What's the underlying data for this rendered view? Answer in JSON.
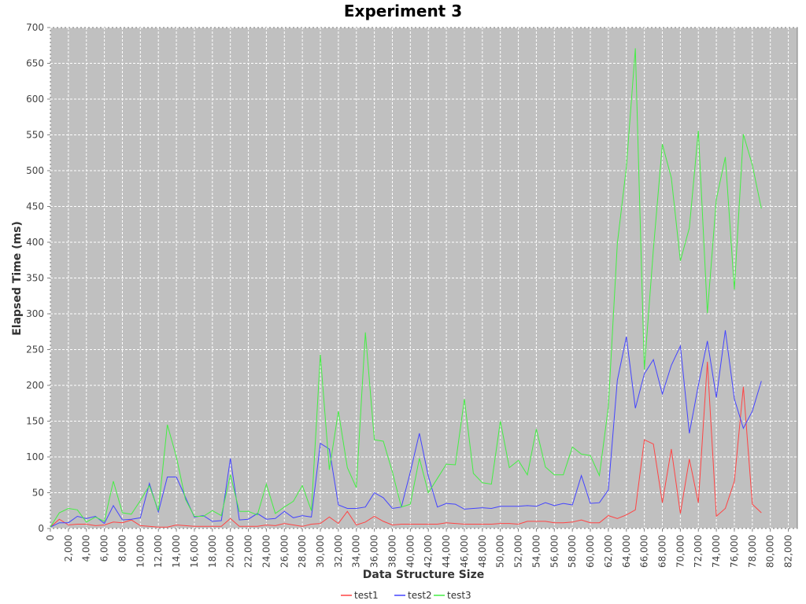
{
  "chart_data": {
    "type": "line",
    "title": "Experiment 3",
    "xlabel": "Data Structure Size",
    "ylabel": "Elapsed Time (ms)",
    "xlim": [
      0,
      83000
    ],
    "ylim": [
      0,
      700
    ],
    "x_ticks": [
      0,
      2000,
      4000,
      6000,
      8000,
      10000,
      12000,
      14000,
      16000,
      18000,
      20000,
      22000,
      24000,
      26000,
      28000,
      30000,
      32000,
      34000,
      36000,
      38000,
      40000,
      42000,
      44000,
      46000,
      48000,
      50000,
      52000,
      54000,
      56000,
      58000,
      60000,
      62000,
      64000,
      66000,
      68000,
      70000,
      72000,
      74000,
      76000,
      78000,
      80000,
      82000
    ],
    "x_tick_labels": [
      "0",
      "2,000",
      "4,000",
      "6,000",
      "8,000",
      "10,000",
      "12,000",
      "14,000",
      "16,000",
      "18,000",
      "20,000",
      "22,000",
      "24,000",
      "26,000",
      "28,000",
      "30,000",
      "32,000",
      "34,000",
      "36,000",
      "38,000",
      "40,000",
      "42,000",
      "44,000",
      "46,000",
      "48,000",
      "50,000",
      "52,000",
      "54,000",
      "56,000",
      "58,000",
      "60,000",
      "62,000",
      "64,000",
      "66,000",
      "68,000",
      "70,000",
      "72,000",
      "74,000",
      "76,000",
      "78,000",
      "80,000",
      "82,000"
    ],
    "y_ticks": [
      0,
      50,
      100,
      150,
      200,
      250,
      300,
      350,
      400,
      450,
      500,
      550,
      600,
      650,
      700
    ],
    "y_tick_labels": [
      "0",
      "50",
      "100",
      "150",
      "200",
      "250",
      "300",
      "350",
      "400",
      "450",
      "500",
      "550",
      "600",
      "650",
      "700"
    ],
    "grid": true,
    "legend_position": "bottom-center",
    "x": [
      0,
      1000,
      2000,
      3000,
      4000,
      5000,
      6000,
      7000,
      8000,
      9000,
      10000,
      11000,
      12000,
      13000,
      14000,
      15000,
      16000,
      17000,
      18000,
      19000,
      20000,
      21000,
      22000,
      23000,
      24000,
      25000,
      26000,
      27000,
      28000,
      29000,
      30000,
      31000,
      32000,
      33000,
      34000,
      35000,
      36000,
      37000,
      38000,
      39000,
      40000,
      41000,
      42000,
      43000,
      44000,
      45000,
      46000,
      47000,
      48000,
      49000,
      50000,
      51000,
      52000,
      53000,
      54000,
      55000,
      56000,
      57000,
      58000,
      59000,
      60000,
      61000,
      62000,
      63000,
      64000,
      65000,
      66000,
      67000,
      68000,
      69000,
      70000,
      71000,
      72000,
      73000,
      74000,
      75000,
      76000,
      77000,
      78000,
      79000
    ],
    "series": [
      {
        "name": "test1",
        "color": "#ff4444",
        "values": [
          2,
          13,
          5,
          6,
          6,
          4,
          5,
          9,
          8,
          12,
          4,
          3,
          2,
          2,
          5,
          4,
          3,
          3,
          3,
          3,
          14,
          3,
          3,
          3,
          5,
          4,
          7,
          5,
          3,
          6,
          7,
          16,
          7,
          24,
          5,
          9,
          17,
          10,
          5,
          6,
          6,
          6,
          6,
          6,
          8,
          7,
          6,
          6,
          6,
          6,
          7,
          7,
          6,
          10,
          10,
          10,
          8,
          8,
          9,
          12,
          8,
          8,
          18,
          14,
          19,
          26,
          124,
          118,
          36,
          111,
          21,
          97,
          36,
          233,
          17,
          28,
          66,
          198,
          34,
          22
        ]
      },
      {
        "name": "test2",
        "color": "#4444ff",
        "values": [
          2,
          8,
          8,
          17,
          14,
          17,
          7,
          32,
          12,
          13,
          15,
          63,
          23,
          72,
          72,
          44,
          16,
          18,
          10,
          11,
          98,
          12,
          13,
          21,
          13,
          14,
          24,
          15,
          18,
          16,
          119,
          111,
          33,
          28,
          28,
          30,
          50,
          43,
          28,
          30,
          79,
          133,
          73,
          30,
          35,
          34,
          27,
          28,
          29,
          28,
          31,
          31,
          31,
          32,
          31,
          36,
          32,
          35,
          33,
          74,
          35,
          36,
          54,
          207,
          268,
          168,
          216,
          236,
          188,
          228,
          255,
          133,
          200,
          262,
          183,
          277,
          181,
          140,
          164,
          206
        ]
      },
      {
        "name": "test3",
        "color": "#44ee44",
        "values": [
          2,
          22,
          28,
          26,
          9,
          16,
          10,
          66,
          22,
          20,
          39,
          60,
          25,
          145,
          100,
          41,
          17,
          17,
          25,
          18,
          75,
          24,
          24,
          19,
          62,
          21,
          30,
          38,
          60,
          25,
          243,
          82,
          164,
          85,
          57,
          274,
          124,
          122,
          79,
          30,
          34,
          98,
          50,
          70,
          90,
          89,
          181,
          77,
          64,
          62,
          150,
          85,
          95,
          75,
          139,
          86,
          75,
          75,
          114,
          104,
          102,
          74,
          170,
          398,
          505,
          671,
          222,
          390,
          537,
          490,
          374,
          420,
          556,
          301,
          460,
          519,
          334,
          551,
          508,
          447
        ]
      }
    ]
  }
}
